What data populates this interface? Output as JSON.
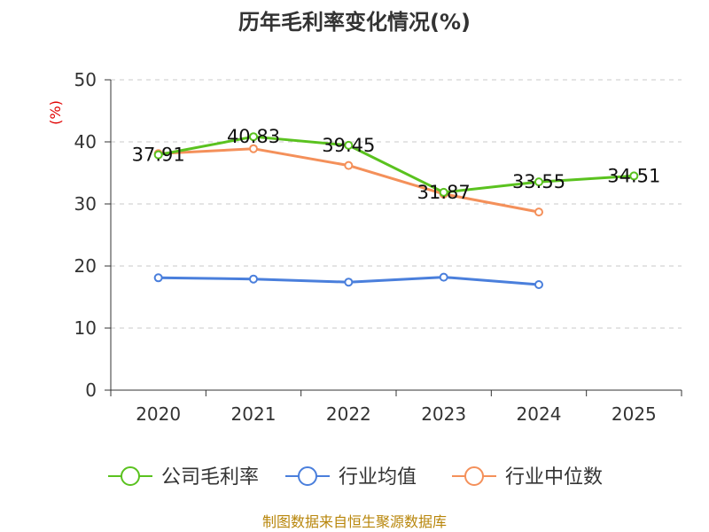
{
  "chart_data": {
    "type": "line",
    "title": "历年毛利率变化情况(%)",
    "ylabel": "(%)",
    "xlabel": "",
    "categories": [
      "2020",
      "2021",
      "2022",
      "2023",
      "2024",
      "2025"
    ],
    "ylim": [
      0,
      50
    ],
    "yticks": [
      0,
      10,
      20,
      30,
      40,
      50
    ],
    "grid": true,
    "legend_position": "bottom",
    "series": [
      {
        "name": "公司毛利率",
        "color": "#5ac21f",
        "values": [
          37.91,
          40.83,
          39.45,
          31.87,
          33.55,
          34.51
        ],
        "labels": [
          "37.91",
          "40.83",
          "39.45",
          "31.87",
          "33.55",
          "34.51"
        ]
      },
      {
        "name": "行业均值",
        "color": "#4a7fdc",
        "values": [
          18.1,
          17.9,
          17.4,
          18.2,
          17.0,
          null
        ]
      },
      {
        "name": "行业中位数",
        "color": "#f4905a",
        "values": [
          38.1,
          38.9,
          36.2,
          31.6,
          28.7,
          null
        ]
      }
    ],
    "source": "制图数据来自恒生聚源数据库"
  }
}
